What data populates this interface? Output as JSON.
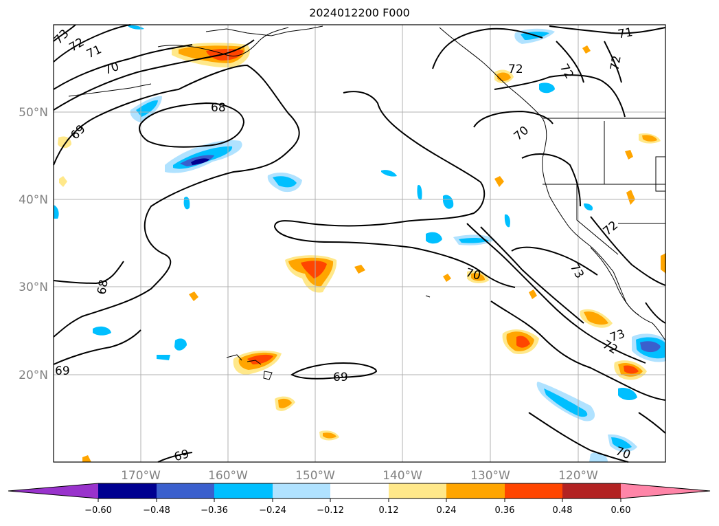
{
  "title": "2024012200 F000",
  "map": {
    "lat_ticks": [
      "50°N",
      "40°N",
      "30°N",
      "20°N"
    ],
    "lon_ticks": [
      "170°W",
      "160°W",
      "150°W",
      "140°W",
      "130°W",
      "120°W"
    ],
    "grid": true,
    "contour_labels": [
      "73",
      "72",
      "71",
      "70",
      "68",
      "69",
      "71",
      "72",
      "72",
      "72",
      "70",
      "68",
      "70",
      "72",
      "73",
      "73",
      "72",
      "69",
      "69",
      "69",
      "70"
    ]
  },
  "colorbar": {
    "ticks": [
      "−0.60",
      "−0.48",
      "−0.36",
      "−0.24",
      "−0.12",
      "0.12",
      "0.24",
      "0.36",
      "0.48",
      "0.60"
    ],
    "colors": [
      "#9933cc",
      "#000090",
      "#3a5fcd",
      "#00bfff",
      "#b0e2ff",
      "#ffffff",
      "#ffe88a",
      "#ffa500",
      "#ff4500",
      "#b22222",
      "#ff85a8"
    ]
  }
}
